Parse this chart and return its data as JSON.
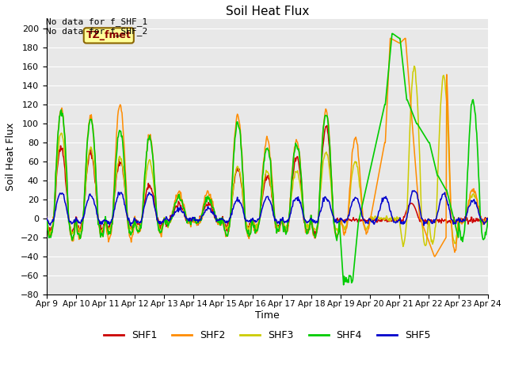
{
  "title": "Soil Heat Flux",
  "ylabel": "Soil Heat Flux",
  "xlabel": "Time",
  "annotations": [
    "No data for f_SHF_1",
    "No data for f_SHF_2"
  ],
  "tz_label": "TZ_fmet",
  "ylim": [
    -80,
    210
  ],
  "yticks": [
    -80,
    -60,
    -40,
    -20,
    0,
    20,
    40,
    60,
    80,
    100,
    120,
    140,
    160,
    180,
    200
  ],
  "xlim": [
    9,
    24
  ],
  "colors": {
    "SHF1": "#cc0000",
    "SHF2": "#ff8c00",
    "SHF3": "#cccc00",
    "SHF4": "#00cc00",
    "SHF5": "#0000cc"
  },
  "plot_bg": "#e8e8e8",
  "fig_bg": "#ffffff",
  "grid_color": "#ffffff",
  "title_fontsize": 11,
  "label_fontsize": 9,
  "tick_fontsize": 8,
  "legend_fontsize": 9
}
